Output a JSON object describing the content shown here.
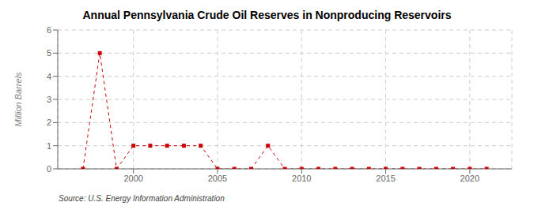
{
  "chart_data": {
    "type": "line",
    "title": "Annual Pennsylvania Crude Oil Reserves in Nonproducing Reservoirs",
    "ylabel": "Million Barrels",
    "annotation": "Source: U.S. Energy Information Administration",
    "x": [
      1997,
      1998,
      1999,
      2000,
      2001,
      2002,
      2003,
      2004,
      2005,
      2006,
      2007,
      2008,
      2009,
      2010,
      2011,
      2012,
      2013,
      2014,
      2015,
      2016,
      2017,
      2018,
      2019,
      2020,
      2021
    ],
    "values": [
      0.0,
      5.0,
      0.0,
      1.0,
      1.0,
      1.0,
      1.0,
      1.0,
      0.0,
      0.0,
      0.0,
      1.0,
      0.0,
      0.0,
      0.0,
      0.0,
      0.0,
      0.0,
      0.0,
      0.0,
      0.0,
      0.0,
      0.0,
      0.0,
      0.0
    ],
    "color": "#cc0000",
    "marker": "square",
    "line_style": "dashed",
    "xlim": [
      1995.5,
      2022.5
    ],
    "ylim": [
      0,
      6
    ],
    "xticks": [
      2000,
      2005,
      2010,
      2015,
      2020
    ],
    "yticks": [
      0,
      1,
      2,
      3,
      4,
      5,
      6
    ],
    "grid": true
  }
}
